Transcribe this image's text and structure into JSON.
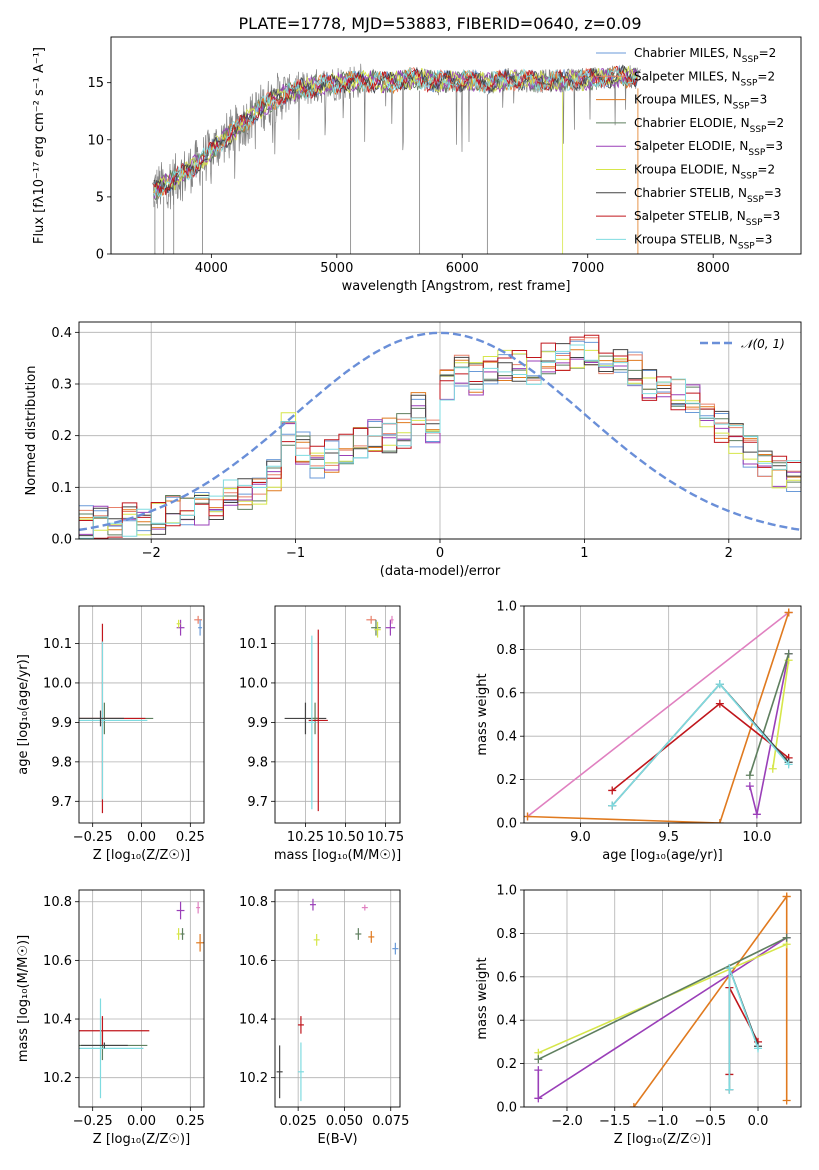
{
  "figure": {
    "title": "PLATE=1778, MJD=53883, FIBERID=0640, z=0.09"
  },
  "colors": {
    "chabrier_miles": "#6a9ad8",
    "salpeter_miles": "#e8806a",
    "kroupa_miles": "#e07a1f",
    "chabrier_elodie": "#5f7f5f",
    "salpeter_elodie": "#9a3fb8",
    "kroupa_elodie": "#d6e64a",
    "chabrier_stelib": "#444444",
    "salpeter_stelib": "#c0161c",
    "kroupa_stelib": "#7fdbe0",
    "normal": "#6a8fd8",
    "extra_pink": "#e080c0",
    "spectrum": "#808080"
  },
  "chart_data": [
    {
      "id": "spectrum",
      "type": "line",
      "title": "PLATE=1778, MJD=53883, FIBERID=0640, z=0.09",
      "xlabel": "wavelength [Angstrom, rest frame]",
      "ylabel": "Flux [fλ10⁻¹⁷ erg cm⁻² s⁻¹ A⁻¹]",
      "xlim": [
        3200,
        8700
      ],
      "ylim": [
        0,
        19
      ],
      "xticks": [
        4000,
        5000,
        6000,
        7000,
        8000
      ],
      "yticks": [
        0,
        5,
        10,
        15
      ],
      "grid": false,
      "legend_position": "right",
      "legend": [
        "Chabrier MILES, N_SSP=2",
        "Salpeter MILES, N_SSP=2",
        "Kroupa MILES, N_SSP=3",
        "Chabrier ELODIE, N_SSP=2",
        "Salpeter ELODIE, N_SSP=3",
        "Kroupa ELODIE, N_SSP=2",
        "Chabrier STELIB, N_SSP=3",
        "Salpeter STELIB, N_SSP=3",
        "Kroupa STELIB, N_SSP=3"
      ],
      "continuum": {
        "x": [
          3530,
          3700,
          3850,
          3950,
          4050,
          4200,
          4350,
          4500,
          4650,
          4800,
          5000,
          5200,
          5400,
          5600,
          5800,
          6000,
          6200,
          6400,
          6600,
          6800,
          7000,
          7200,
          7400
        ],
        "y": [
          5.5,
          6.5,
          7.6,
          8.4,
          9.6,
          10.9,
          12.4,
          13.6,
          14.3,
          14.6,
          15.0,
          15.2,
          15.0,
          15.4,
          15.1,
          15.2,
          15.0,
          15.3,
          15.1,
          15.2,
          15.3,
          15.5,
          15.5
        ]
      }
    },
    {
      "id": "residuals",
      "type": "line",
      "xlabel": "(data-model)/error",
      "ylabel": "Normed distribution",
      "xlim": [
        -2.5,
        2.5
      ],
      "ylim": [
        0,
        0.42
      ],
      "xticks": [
        -2,
        -1,
        0,
        1,
        2
      ],
      "yticks": [
        0.0,
        0.1,
        0.2,
        0.3,
        0.4
      ],
      "grid": true,
      "legend_position": "top-right",
      "legend": [
        "𝒩(0, 1)"
      ],
      "bin_width": 0.1,
      "bin_start": -2.5,
      "base_histogram": [
        0.03,
        0.035,
        0.03,
        0.04,
        0.035,
        0.04,
        0.05,
        0.045,
        0.06,
        0.07,
        0.08,
        0.09,
        0.1,
        0.12,
        0.21,
        0.18,
        0.15,
        0.16,
        0.17,
        0.19,
        0.2,
        0.2,
        0.21,
        0.25,
        0.22,
        0.3,
        0.33,
        0.31,
        0.33,
        0.34,
        0.34,
        0.33,
        0.35,
        0.35,
        0.36,
        0.37,
        0.35,
        0.34,
        0.33,
        0.3,
        0.3,
        0.28,
        0.27,
        0.24,
        0.22,
        0.2,
        0.17,
        0.15,
        0.13,
        0.12
      ]
    },
    {
      "id": "age_vs_z",
      "type": "scatter",
      "xlabel": "Z [log₁₀(Z/Z☉)]",
      "ylabel": "age  [log₁₀(age/yr)]",
      "xlim": [
        -0.32,
        0.32
      ],
      "ylim": [
        9.645,
        10.195
      ],
      "xticks": [
        -0.25,
        0.0,
        0.25
      ],
      "yticks": [
        9.7,
        9.8,
        9.9,
        10.0,
        10.1
      ],
      "grid": true,
      "points": [
        {
          "x": -0.19,
          "y": 9.91,
          "xerr": 0.25,
          "yerr": 0.04,
          "color": "chabrier_elodie"
        },
        {
          "x": -0.2,
          "y": 9.91,
          "xerr": 0.22,
          "yerr": 0.24,
          "color": "salpeter_stelib"
        },
        {
          "x": -0.2,
          "y": 9.905,
          "xerr": 0.23,
          "yerr": 0.2,
          "color": "kroupa_stelib"
        },
        {
          "x": -0.21,
          "y": 9.91,
          "xerr": 0.12,
          "yerr": 0.02,
          "color": "chabrier_stelib"
        },
        {
          "x": 0.2,
          "y": 10.14,
          "xerr": 0.02,
          "yerr": 0.02,
          "color": "salpeter_elodie"
        },
        {
          "x": 0.19,
          "y": 10.15,
          "xerr": 0.01,
          "yerr": 0.01,
          "color": "kroupa_elodie"
        },
        {
          "x": 0.29,
          "y": 10.16,
          "xerr": 0.02,
          "yerr": 0.01,
          "color": "salpeter_miles"
        },
        {
          "x": 0.3,
          "y": 10.14,
          "xerr": 0.01,
          "yerr": 0.02,
          "color": "chabrier_miles"
        }
      ]
    },
    {
      "id": "age_vs_mass",
      "type": "scatter",
      "xlabel": "mass [log₁₀(M/M☉)]",
      "ylabel": "",
      "xlim": [
        10.06,
        10.84
      ],
      "ylim": [
        9.645,
        10.195
      ],
      "xticks": [
        10.25,
        10.5,
        10.75
      ],
      "yticks": [
        9.7,
        9.8,
        9.9,
        10.0,
        10.1
      ],
      "grid": true,
      "points": [
        {
          "x": 10.25,
          "y": 9.91,
          "xerr": 0.13,
          "yerr": 0.04,
          "color": "chabrier_stelib"
        },
        {
          "x": 10.31,
          "y": 9.91,
          "xerr": 0.02,
          "yerr": 0.04,
          "color": "chabrier_elodie"
        },
        {
          "x": 10.33,
          "y": 9.905,
          "xerr": 0.06,
          "yerr": 0.23,
          "color": "salpeter_stelib"
        },
        {
          "x": 10.29,
          "y": 9.9,
          "xerr": 0.02,
          "yerr": 0.22,
          "color": "kroupa_stelib"
        },
        {
          "x": 10.66,
          "y": 10.16,
          "xerr": 0.03,
          "yerr": 0.01,
          "color": "salpeter_miles"
        },
        {
          "x": 10.69,
          "y": 10.14,
          "xerr": 0.03,
          "yerr": 0.02,
          "color": "chabrier_elodie"
        },
        {
          "x": 10.7,
          "y": 10.135,
          "xerr": 0.02,
          "yerr": 0.02,
          "color": "kroupa_elodie"
        },
        {
          "x": 10.78,
          "y": 10.14,
          "xerr": 0.03,
          "yerr": 0.02,
          "color": "salpeter_elodie"
        },
        {
          "x": 10.79,
          "y": 10.16,
          "xerr": 0.01,
          "yerr": 0.01,
          "color": "extra_pink"
        }
      ]
    },
    {
      "id": "weight_vs_age",
      "type": "line",
      "xlabel": "age  [log₁₀(age/yr)]",
      "ylabel": "mass weight",
      "xlim": [
        8.68,
        10.25
      ],
      "ylim": [
        0,
        1
      ],
      "xticks": [
        9.0,
        9.5,
        10.0
      ],
      "yticks": [
        0.0,
        0.2,
        0.4,
        0.6,
        0.8,
        1.0
      ],
      "grid": true,
      "series": [
        {
          "color": "extra_pink",
          "x": [
            8.7,
            10.18
          ],
          "y": [
            0.03,
            0.97
          ]
        },
        {
          "color": "kroupa_miles",
          "x": [
            8.7,
            9.79,
            10.18,
            10.18
          ],
          "y": [
            0.03,
            0.0,
            0.97,
            0.97
          ]
        },
        {
          "color": "salpeter_elodie",
          "x": [
            9.96,
            10.0,
            10.18
          ],
          "y": [
            0.17,
            0.04,
            0.78
          ]
        },
        {
          "color": "kroupa_elodie",
          "x": [
            10.09,
            10.18
          ],
          "y": [
            0.25,
            0.75
          ]
        },
        {
          "color": "chabrier_elodie",
          "x": [
            9.96,
            10.18
          ],
          "y": [
            0.22,
            0.78
          ]
        },
        {
          "color": "salpeter_stelib",
          "x": [
            9.18,
            9.79,
            10.18
          ],
          "y": [
            0.15,
            0.55,
            0.3
          ]
        },
        {
          "color": "chabrier_stelib",
          "x": [
            9.18,
            9.79,
            10.18
          ],
          "y": [
            0.08,
            0.64,
            0.28
          ]
        },
        {
          "color": "kroupa_stelib",
          "x": [
            9.18,
            9.79,
            10.18
          ],
          "y": [
            0.08,
            0.64,
            0.27
          ]
        }
      ]
    },
    {
      "id": "weight_vs_z",
      "type": "line",
      "xlabel": "Z [log₁₀(Z/Z☉)]",
      "ylabel": "mass weight",
      "xlim": [
        -2.45,
        0.45
      ],
      "ylim": [
        0,
        1
      ],
      "xticks": [
        -2.0,
        -1.5,
        -1.0,
        -0.5,
        0.0
      ],
      "yticks": [
        0.0,
        0.2,
        0.4,
        0.6,
        0.8,
        1.0
      ],
      "grid": true,
      "series": [
        {
          "color": "kroupa_miles",
          "x": [
            -1.3,
            0.3,
            0.3,
            0.3
          ],
          "y": [
            0.0,
            0.97,
            0.97,
            0.03
          ]
        },
        {
          "color": "salpeter_elodie",
          "x": [
            -2.3,
            -2.3,
            0.3
          ],
          "y": [
            0.17,
            0.04,
            0.78
          ]
        },
        {
          "color": "kroupa_elodie",
          "x": [
            -2.3,
            0.3
          ],
          "y": [
            0.25,
            0.75
          ]
        },
        {
          "color": "chabrier_elodie",
          "x": [
            -2.3,
            0.3
          ],
          "y": [
            0.22,
            0.78
          ]
        },
        {
          "color": "salpeter_stelib",
          "x": [
            -0.3,
            -0.3,
            0.0
          ],
          "y": [
            0.15,
            0.55,
            0.3
          ]
        },
        {
          "color": "chabrier_stelib",
          "x": [
            -0.3,
            -0.3,
            0.0
          ],
          "y": [
            0.08,
            0.64,
            0.28
          ]
        },
        {
          "color": "kroupa_stelib",
          "x": [
            -0.3,
            -0.3,
            0.0
          ],
          "y": [
            0.08,
            0.64,
            0.27
          ]
        }
      ]
    },
    {
      "id": "mass_vs_z",
      "type": "scatter",
      "xlabel": "Z [log₁₀(Z/Z☉)]",
      "ylabel": "mass [log₁₀(M/M☉)]",
      "xlim": [
        -0.32,
        0.32
      ],
      "ylim": [
        10.1,
        10.84
      ],
      "xticks": [
        -0.25,
        0.0,
        0.25
      ],
      "yticks": [
        10.2,
        10.4,
        10.6,
        10.8
      ],
      "grid": true,
      "points": [
        {
          "x": -0.2,
          "y": 10.31,
          "xerr": 0.23,
          "yerr": 0.05,
          "color": "chabrier_elodie"
        },
        {
          "x": -0.2,
          "y": 10.36,
          "xerr": 0.24,
          "yerr": 0.05,
          "color": "salpeter_stelib"
        },
        {
          "x": -0.21,
          "y": 10.3,
          "xerr": 0.22,
          "yerr": 0.17,
          "color": "kroupa_stelib"
        },
        {
          "x": -0.19,
          "y": 10.31,
          "xerr": 0.12,
          "yerr": 0.01,
          "color": "chabrier_stelib"
        },
        {
          "x": 0.2,
          "y": 10.77,
          "xerr": 0.02,
          "yerr": 0.03,
          "color": "salpeter_elodie"
        },
        {
          "x": 0.19,
          "y": 10.69,
          "xerr": 0.01,
          "yerr": 0.02,
          "color": "kroupa_elodie"
        },
        {
          "x": 0.21,
          "y": 10.69,
          "xerr": 0.01,
          "yerr": 0.02,
          "color": "chabrier_elodie"
        },
        {
          "x": 0.29,
          "y": 10.78,
          "xerr": 0.01,
          "yerr": 0.02,
          "color": "extra_pink"
        },
        {
          "x": 0.3,
          "y": 10.66,
          "xerr": 0.02,
          "yerr": 0.03,
          "color": "kroupa_miles"
        }
      ]
    },
    {
      "id": "mass_vs_ebv",
      "type": "scatter",
      "xlabel": "E(B-V)",
      "ylabel": "",
      "xlim": [
        0.0125,
        0.08
      ],
      "ylim": [
        10.1,
        10.84
      ],
      "xticks": [
        0.025,
        0.05,
        0.075
      ],
      "yticks": [
        10.2,
        10.4,
        10.6,
        10.8
      ],
      "grid": true,
      "points": [
        {
          "x": 0.015,
          "y": 10.22,
          "xerr": 0,
          "yerr": 0.09,
          "color": "chabrier_stelib"
        },
        {
          "x": 0.0265,
          "y": 10.38,
          "xerr": 0,
          "yerr": 0.03,
          "color": "salpeter_stelib"
        },
        {
          "x": 0.0265,
          "y": 10.22,
          "xerr": 0,
          "yerr": 0.1,
          "color": "kroupa_stelib"
        },
        {
          "x": 0.033,
          "y": 10.79,
          "xerr": 0,
          "yerr": 0.02,
          "color": "salpeter_elodie"
        },
        {
          "x": 0.035,
          "y": 10.67,
          "xerr": 0,
          "yerr": 0.02,
          "color": "kroupa_elodie"
        },
        {
          "x": 0.0575,
          "y": 10.69,
          "xerr": 0,
          "yerr": 0.02,
          "color": "chabrier_elodie"
        },
        {
          "x": 0.061,
          "y": 10.78,
          "xerr": 0,
          "yerr": 0.01,
          "color": "extra_pink"
        },
        {
          "x": 0.0645,
          "y": 10.68,
          "xerr": 0,
          "yerr": 0.02,
          "color": "kroupa_miles"
        },
        {
          "x": 0.0775,
          "y": 10.64,
          "xerr": 0,
          "yerr": 0.02,
          "color": "chabrier_miles"
        }
      ]
    }
  ]
}
